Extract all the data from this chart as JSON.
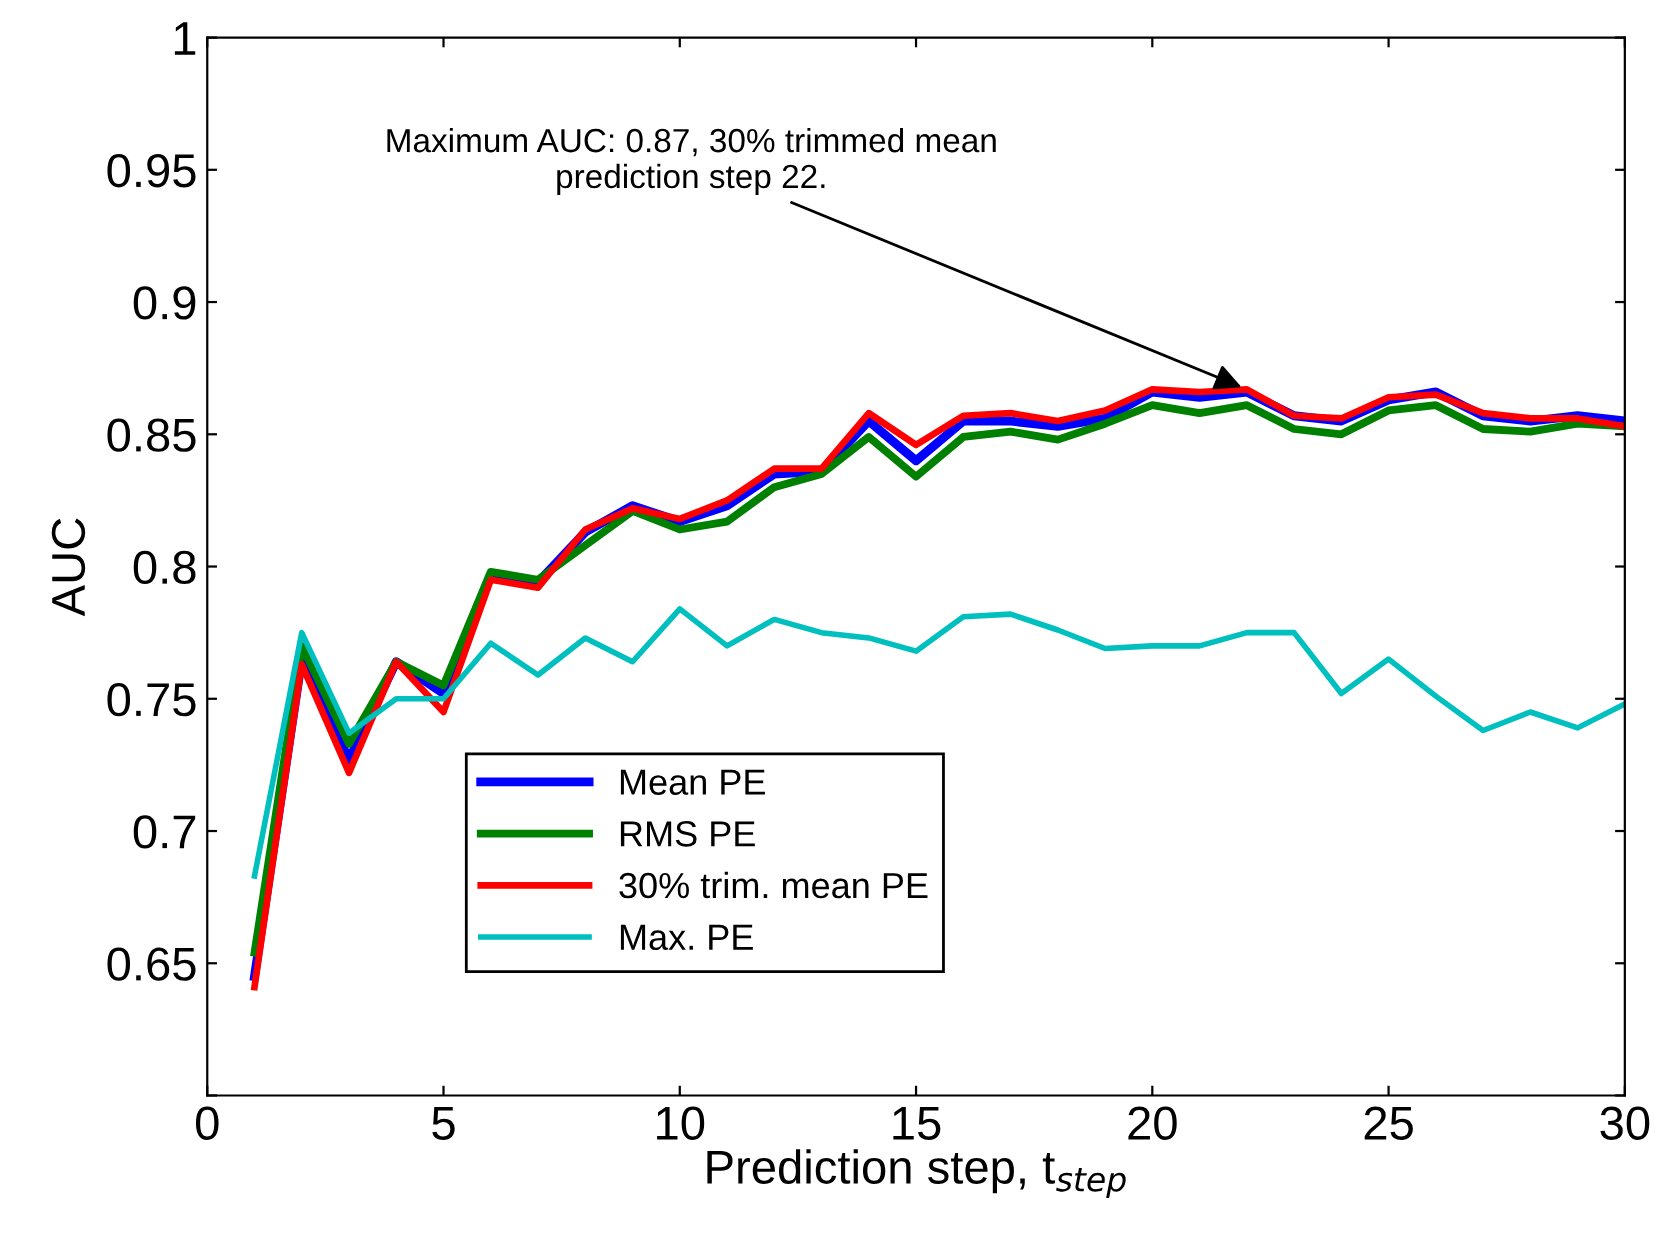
{
  "chart_data": {
    "type": "line",
    "xlabel": "Prediction step, t$_{step}$",
    "ylabel": "AUC",
    "x": [
      1,
      2,
      3,
      4,
      5,
      6,
      7,
      8,
      9,
      10,
      11,
      12,
      13,
      14,
      15,
      16,
      17,
      18,
      19,
      20,
      21,
      22,
      23,
      24,
      25,
      26,
      27,
      28,
      29,
      30
    ],
    "series": [
      {
        "name": "Mean PE",
        "color": "#0000ff",
        "values": [
          0.645,
          0.765,
          0.727,
          0.764,
          0.752,
          0.797,
          0.794,
          0.813,
          0.823,
          0.817,
          0.823,
          0.835,
          0.836,
          0.855,
          0.84,
          0.855,
          0.855,
          0.853,
          0.856,
          0.866,
          0.864,
          0.866,
          0.857,
          0.855,
          0.863,
          0.866,
          0.857,
          0.855,
          0.857,
          0.855
        ]
      },
      {
        "name": "RMS PE",
        "color": "#008000",
        "values": [
          0.654,
          0.77,
          0.733,
          0.764,
          0.755,
          0.798,
          0.795,
          0.808,
          0.821,
          0.814,
          0.817,
          0.83,
          0.835,
          0.849,
          0.834,
          0.849,
          0.851,
          0.848,
          0.854,
          0.861,
          0.858,
          0.861,
          0.852,
          0.85,
          0.859,
          0.861,
          0.852,
          0.851,
          0.854,
          0.853
        ]
      },
      {
        "name": "30% trim. mean PE",
        "color": "#ff0000",
        "values": [
          0.641,
          0.763,
          0.722,
          0.764,
          0.745,
          0.795,
          0.792,
          0.814,
          0.822,
          0.818,
          0.825,
          0.837,
          0.837,
          0.858,
          0.846,
          0.857,
          0.858,
          0.855,
          0.859,
          0.867,
          0.866,
          0.867,
          0.857,
          0.856,
          0.864,
          0.865,
          0.858,
          0.856,
          0.856,
          0.853
        ]
      },
      {
        "name": "Max. PE",
        "color": "#00bfbf",
        "values": [
          0.683,
          0.775,
          0.737,
          0.75,
          0.75,
          0.771,
          0.759,
          0.773,
          0.764,
          0.784,
          0.77,
          0.78,
          0.775,
          0.773,
          0.768,
          0.781,
          0.782,
          0.776,
          0.769,
          0.77,
          0.77,
          0.775,
          0.775,
          0.752,
          0.765,
          0.751,
          0.738,
          0.745,
          0.739,
          0.748
        ]
      }
    ],
    "annotations": [
      {
        "text": "Maximum AUC: 0.87, 30% trimmed mean\nprediction step 22.",
        "x": 22,
        "y": 0.867
      }
    ],
    "xlim": [
      0,
      30
    ],
    "xticks": [
      0,
      5,
      10,
      15,
      20,
      25,
      30
    ],
    "ylim": [
      0.6,
      1
    ],
    "yticks": [
      {
        "value": 0.6,
        "label": null
      },
      0.65,
      0.7,
      0.75,
      0.8,
      0.85,
      0.9,
      0.95,
      1
    ],
    "legend": "bottom left",
    "grid": false,
    "marker": "none",
    "line_style": "solid"
  }
}
